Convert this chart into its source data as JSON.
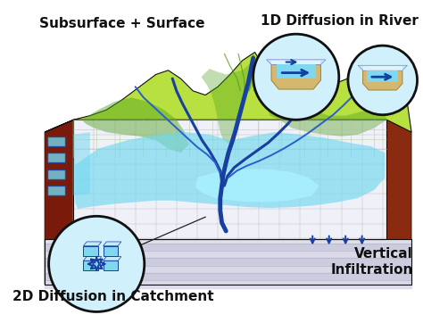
{
  "bg_color": "#ffffff",
  "labels": {
    "top_left": "Subsurface + Surface",
    "top_right": "1D Diffusion in River",
    "bottom_left": "2D Diffusion in Catchment",
    "bottom_right": "Vertical\nInfiltration"
  },
  "label_fontsize": 11,
  "label_color": "#111111",
  "green_light": "#b8e040",
  "green_mid": "#90c830",
  "green_dark": "#50a020",
  "water_cyan": "#70d8f0",
  "water_bright": "#a8f0ff",
  "river_dark": "#1840a0",
  "river_mid": "#2860cc",
  "soil_brown": "#7a1a0a",
  "soil_side": "#8a2a10",
  "grid_color": "#c0c0c0",
  "flat_white": "#f0f0f8",
  "layer_color": "#d8d8e8",
  "circle_edge": "#111111",
  "inset_bg_light": "#d0f0fc",
  "inset_water": "#80d8f0",
  "inset_tan": "#d4b870",
  "inset_dark_blue": "#1040a0",
  "outline_black": "#101010"
}
